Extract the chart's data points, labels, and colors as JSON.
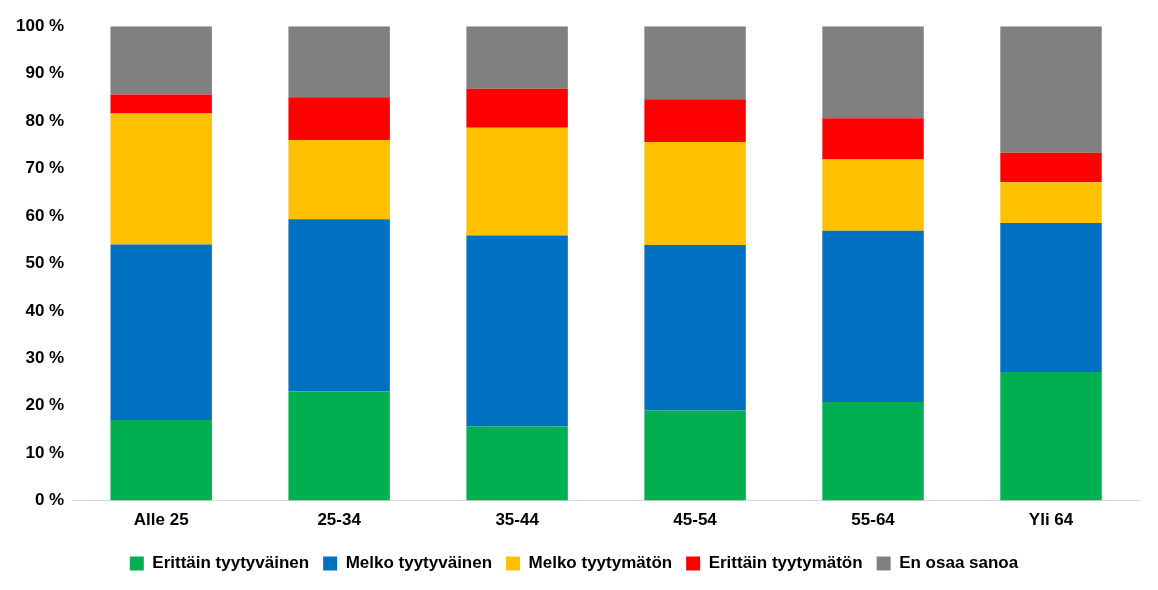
{
  "chart_data": {
    "type": "bar",
    "stacked": true,
    "categories": [
      "Alle 25",
      "25-34",
      "35-44",
      "45-54",
      "55-64",
      "Yli 64"
    ],
    "series": [
      {
        "name": "Erittäin tyytyväinen",
        "color": "#00b050",
        "values": [
          17,
          23,
          15.6,
          19,
          20.8,
          27.1
        ]
      },
      {
        "name": "Melko tyytyväinen",
        "color": "#0070c0",
        "values": [
          37,
          36.3,
          40.3,
          34.9,
          36.1,
          31.4
        ]
      },
      {
        "name": "Melko tyytymätön",
        "color": "#ffc000",
        "values": [
          27.6,
          16.7,
          22.7,
          21.7,
          15,
          8.6
        ]
      },
      {
        "name": "Erittäin tyytymätön",
        "color": "#ff0000",
        "values": [
          4,
          9,
          8.2,
          9,
          8.7,
          6.2
        ]
      },
      {
        "name": "En osaa sanoa",
        "color": "#808080",
        "values": [
          14.4,
          15,
          13.2,
          15.4,
          19.4,
          26.7
        ]
      }
    ],
    "ylim": [
      0,
      100
    ],
    "yticks": [
      {
        "value": 0,
        "label": "0 %"
      },
      {
        "value": 10,
        "label": "10 %"
      },
      {
        "value": 20,
        "label": "20 %"
      },
      {
        "value": 30,
        "label": "30 %"
      },
      {
        "value": 40,
        "label": "40 %"
      },
      {
        "value": 50,
        "label": "50 %"
      },
      {
        "value": 60,
        "label": "60 %"
      },
      {
        "value": 70,
        "label": "70 %"
      },
      {
        "value": 80,
        "label": "80 %"
      },
      {
        "value": 90,
        "label": "90 %"
      },
      {
        "value": 100,
        "label": "100 %"
      }
    ],
    "grid": false,
    "legend": "bottom"
  }
}
